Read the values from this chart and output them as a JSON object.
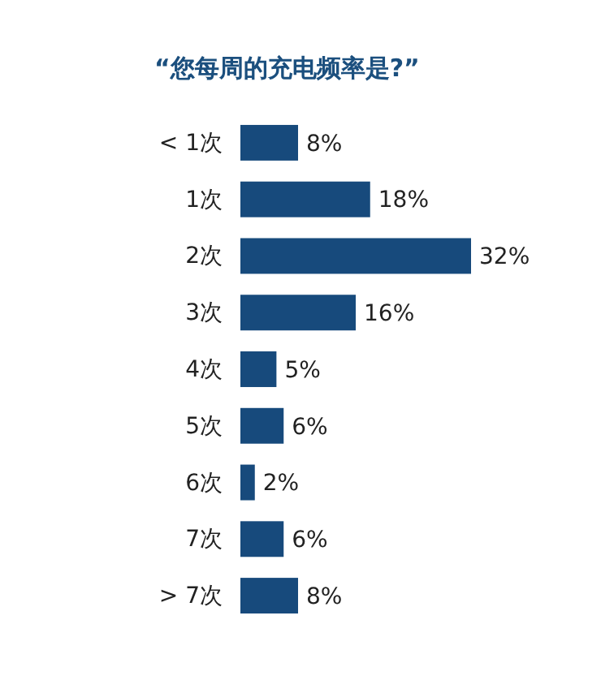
{
  "chart_data": {
    "type": "bar",
    "orientation": "horizontal",
    "title": "“您每周的充电频率是?”",
    "categories": [
      "< 1次",
      "1次",
      "2次",
      "3次",
      "4次",
      "5次",
      "6次",
      "7次",
      "> 7次"
    ],
    "values": [
      8,
      18,
      32,
      16,
      5,
      6,
      2,
      6,
      8
    ],
    "value_labels": [
      "8%",
      "18%",
      "32%",
      "16%",
      "5%",
      "6%",
      "2%",
      "6%",
      "8%"
    ],
    "color": "#174a7c"
  }
}
